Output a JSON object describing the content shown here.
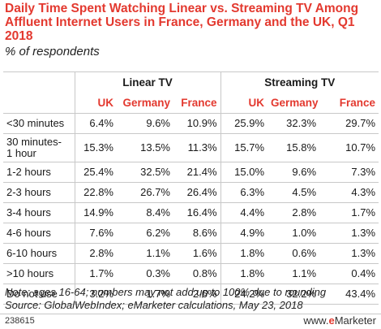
{
  "title": "Daily Time Spent Watching Linear vs. Streaming TV Among Affluent Internet Users in France, Germany and the UK, Q1 2018",
  "subtitle": "% of respondents",
  "groups": [
    "Linear TV",
    "Streaming TV"
  ],
  "subheaders": [
    "UK",
    "Germany",
    "France",
    "UK",
    "Germany",
    "France"
  ],
  "rows": [
    {
      "label": "<30 minutes",
      "values": [
        "6.4%",
        "9.6%",
        "10.9%",
        "25.9%",
        "32.3%",
        "29.7%"
      ]
    },
    {
      "label": "30 minutes-\n1 hour",
      "values": [
        "15.3%",
        "13.5%",
        "11.3%",
        "15.7%",
        "15.8%",
        "10.7%"
      ]
    },
    {
      "label": "1-2 hours",
      "values": [
        "25.4%",
        "32.5%",
        "21.4%",
        "15.0%",
        "9.6%",
        "7.3%"
      ]
    },
    {
      "label": "2-3 hours",
      "values": [
        "22.8%",
        "26.7%",
        "26.4%",
        "6.3%",
        "4.5%",
        "4.3%"
      ]
    },
    {
      "label": "3-4 hours",
      "values": [
        "14.9%",
        "8.4%",
        "16.4%",
        "4.4%",
        "2.8%",
        "1.7%"
      ]
    },
    {
      "label": "4-6 hours",
      "values": [
        "7.6%",
        "6.2%",
        "8.6%",
        "4.9%",
        "1.0%",
        "1.3%"
      ]
    },
    {
      "label": "6-10 hours",
      "values": [
        "2.8%",
        "1.1%",
        "1.6%",
        "1.8%",
        "0.6%",
        "1.3%"
      ]
    },
    {
      "label": ">10 hours",
      "values": [
        "1.7%",
        "0.3%",
        "0.8%",
        "1.8%",
        "1.1%",
        "0.4%"
      ]
    },
    {
      "label": "Do not use",
      "values": [
        "3.2%",
        "1.7%",
        "2.6%",
        "24.2%",
        "32.2%",
        "43.4%"
      ]
    }
  ],
  "note": "Note: ages 16-64; numbers may not add up to 100% due to rounding",
  "source": "Source: GlobalWebIndex; eMarketer calculations, May 23, 2018",
  "footer": {
    "id": "238615",
    "logo_e": "e",
    "logo_rest": "Marketer",
    "logo_prefix": "www."
  },
  "colors": {
    "accent": "#e3392f",
    "rule": "#c8c8c8",
    "text": "#1a1a1a"
  },
  "chart_data": {
    "type": "table",
    "title": "Daily Time Spent Watching Linear vs. Streaming TV Among Affluent Internet Users in France, Germany and the UK, Q1 2018",
    "subtitle": "% of respondents",
    "categories": [
      "<30 minutes",
      "30 minutes-1 hour",
      "1-2 hours",
      "2-3 hours",
      "3-4 hours",
      "4-6 hours",
      "6-10 hours",
      ">10 hours",
      "Do not use"
    ],
    "series": [
      {
        "name": "Linear TV - UK",
        "values": [
          6.4,
          15.3,
          25.4,
          22.8,
          14.9,
          7.6,
          2.8,
          1.7,
          3.2
        ]
      },
      {
        "name": "Linear TV - Germany",
        "values": [
          9.6,
          13.5,
          32.5,
          26.7,
          8.4,
          6.2,
          1.1,
          0.3,
          1.7
        ]
      },
      {
        "name": "Linear TV - France",
        "values": [
          10.9,
          11.3,
          21.4,
          26.4,
          16.4,
          8.6,
          1.6,
          0.8,
          2.6
        ]
      },
      {
        "name": "Streaming TV - UK",
        "values": [
          25.9,
          15.7,
          15.0,
          6.3,
          4.4,
          4.9,
          1.8,
          1.8,
          24.2
        ]
      },
      {
        "name": "Streaming TV - Germany",
        "values": [
          32.3,
          15.8,
          9.6,
          4.5,
          2.8,
          1.0,
          0.6,
          1.1,
          32.2
        ]
      },
      {
        "name": "Streaming TV - France",
        "values": [
          29.7,
          10.7,
          7.3,
          4.3,
          1.7,
          1.3,
          1.3,
          0.4,
          43.4
        ]
      }
    ]
  }
}
